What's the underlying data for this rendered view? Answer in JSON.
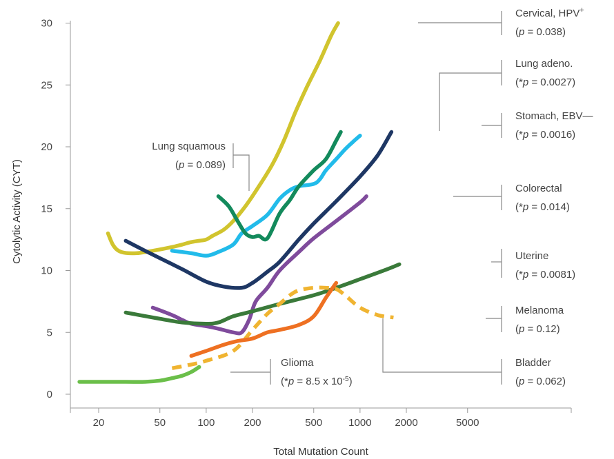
{
  "chart_data": {
    "type": "line",
    "xlabel": "Total Mutation Count",
    "ylabel": "Cytolytic Activity (CYT)",
    "xscale": "log",
    "xlim": [
      10,
      7000
    ],
    "ylim": [
      0,
      30
    ],
    "xticks": [
      20,
      50,
      100,
      200,
      500,
      1000,
      2000,
      5000
    ],
    "yticks": [
      0,
      5,
      10,
      15,
      20,
      25,
      30
    ],
    "grid": false,
    "series": [
      {
        "name_parts": [
          "Cervical, HPV",
          "+"
        ],
        "pvalue_parts": [
          "(",
          "p",
          " = 0.038)"
        ],
        "color": "#d1c42e",
        "dashed": false,
        "x": [
          23,
          25,
          28,
          35,
          45,
          60,
          70,
          80,
          90,
          100,
          110,
          130,
          150,
          180,
          220,
          270,
          320,
          380,
          450,
          550,
          650,
          720
        ],
        "y": [
          13,
          12,
          11.5,
          11.4,
          11.6,
          11.9,
          12.1,
          12.3,
          12.4,
          12.5,
          12.8,
          13.3,
          14.0,
          15.2,
          16.8,
          18.6,
          20.5,
          22.8,
          24.8,
          27.0,
          29.0,
          30.0
        ]
      },
      {
        "name_parts": [
          "Lung adeno."
        ],
        "pvalue_parts": [
          "(*",
          "p",
          " = 0.0027)"
        ],
        "color": "#22bbea",
        "dashed": false,
        "x": [
          60,
          80,
          100,
          120,
          150,
          170,
          200,
          250,
          300,
          350,
          400,
          500,
          550,
          600,
          700,
          800,
          900,
          1000
        ],
        "y": [
          11.6,
          11.4,
          11.2,
          11.5,
          12.1,
          13.0,
          13.6,
          14.5,
          15.8,
          16.5,
          16.8,
          17.0,
          17.4,
          18.1,
          19.0,
          19.8,
          20.4,
          20.9
        ]
      },
      {
        "name_parts": [
          "Stomach, EBV",
          "—"
        ],
        "pvalue_parts": [
          "(*",
          "p",
          " = 0.0016)"
        ],
        "color": "#1e3764",
        "dashed": false,
        "x": [
          30,
          40,
          50,
          70,
          100,
          130,
          170,
          200,
          250,
          300,
          400,
          500,
          700,
          1000,
          1300,
          1600
        ],
        "y": [
          12.4,
          11.6,
          11.0,
          10.1,
          9.1,
          8.7,
          8.6,
          9.0,
          9.9,
          10.7,
          12.5,
          13.8,
          15.6,
          17.6,
          19.3,
          21.2
        ]
      },
      {
        "name_parts": [
          "Lung squamous"
        ],
        "pvalue_parts": [
          "(",
          "p",
          " = 0.089)"
        ],
        "color": "#138a5c",
        "dashed": false,
        "x": [
          120,
          140,
          160,
          180,
          200,
          220,
          250,
          300,
          350,
          400,
          500,
          600,
          700,
          750
        ],
        "y": [
          16.0,
          15.2,
          14.0,
          13.0,
          12.7,
          12.8,
          12.6,
          14.6,
          15.7,
          16.8,
          18.1,
          19.0,
          20.5,
          21.2
        ]
      },
      {
        "name_parts": [
          "Colorectal"
        ],
        "pvalue_parts": [
          "(*",
          "p",
          " = 0.014)"
        ],
        "color": "#7f4b9c",
        "dashed": false,
        "x": [
          45,
          60,
          70,
          80,
          100,
          120,
          150,
          170,
          190,
          210,
          250,
          300,
          400,
          500,
          700,
          1000,
          1100
        ],
        "y": [
          7.0,
          6.4,
          6.0,
          5.7,
          5.5,
          5.3,
          5.0,
          5.0,
          6.0,
          7.5,
          8.6,
          10.0,
          11.5,
          12.6,
          14.0,
          15.5,
          16.0
        ]
      },
      {
        "name_parts": [
          "Uterine"
        ],
        "pvalue_parts": [
          "(*",
          "p",
          " = 0.0081)"
        ],
        "color": "#3a7a3a",
        "dashed": false,
        "x": [
          30,
          50,
          70,
          100,
          120,
          150,
          200,
          300,
          500,
          700,
          1000,
          1500,
          1800
        ],
        "y": [
          6.6,
          6.1,
          5.8,
          5.7,
          5.8,
          6.3,
          6.7,
          7.3,
          8.0,
          8.6,
          9.3,
          10.1,
          10.5
        ]
      },
      {
        "name_parts": [
          "Melanoma"
        ],
        "pvalue_parts": [
          "(",
          "p",
          " = 0.12)"
        ],
        "color": "#f0b431",
        "dashed": true,
        "x": [
          60,
          80,
          100,
          150,
          200,
          250,
          300,
          350,
          400,
          500,
          600,
          700,
          800,
          1000,
          1300,
          1650
        ],
        "y": [
          2.1,
          2.4,
          2.7,
          3.5,
          5.2,
          6.5,
          7.3,
          8.0,
          8.4,
          8.6,
          8.6,
          8.5,
          8.0,
          7.0,
          6.4,
          6.2
        ]
      },
      {
        "name_parts": [
          "Bladder"
        ],
        "pvalue_parts": [
          "(",
          "p",
          " = 0.062)"
        ],
        "color": "#ee7022",
        "dashed": false,
        "x": [
          80,
          100,
          130,
          160,
          200,
          250,
          300,
          400,
          500,
          600,
          700
        ],
        "y": [
          3.1,
          3.5,
          4.0,
          4.3,
          4.5,
          5.0,
          5.2,
          5.6,
          6.3,
          7.8,
          9.0
        ]
      },
      {
        "name_parts": [
          "Glioma"
        ],
        "pvalue_parts": [
          "(*",
          "p",
          " = 8.5 x 10",
          "-5",
          ")"
        ],
        "color": "#6bbf4a",
        "dashed": false,
        "x": [
          15,
          20,
          30,
          40,
          50,
          60,
          70,
          80,
          90
        ],
        "y": [
          1.0,
          1.0,
          1.0,
          1.0,
          1.1,
          1.3,
          1.5,
          1.8,
          2.2
        ]
      }
    ]
  }
}
